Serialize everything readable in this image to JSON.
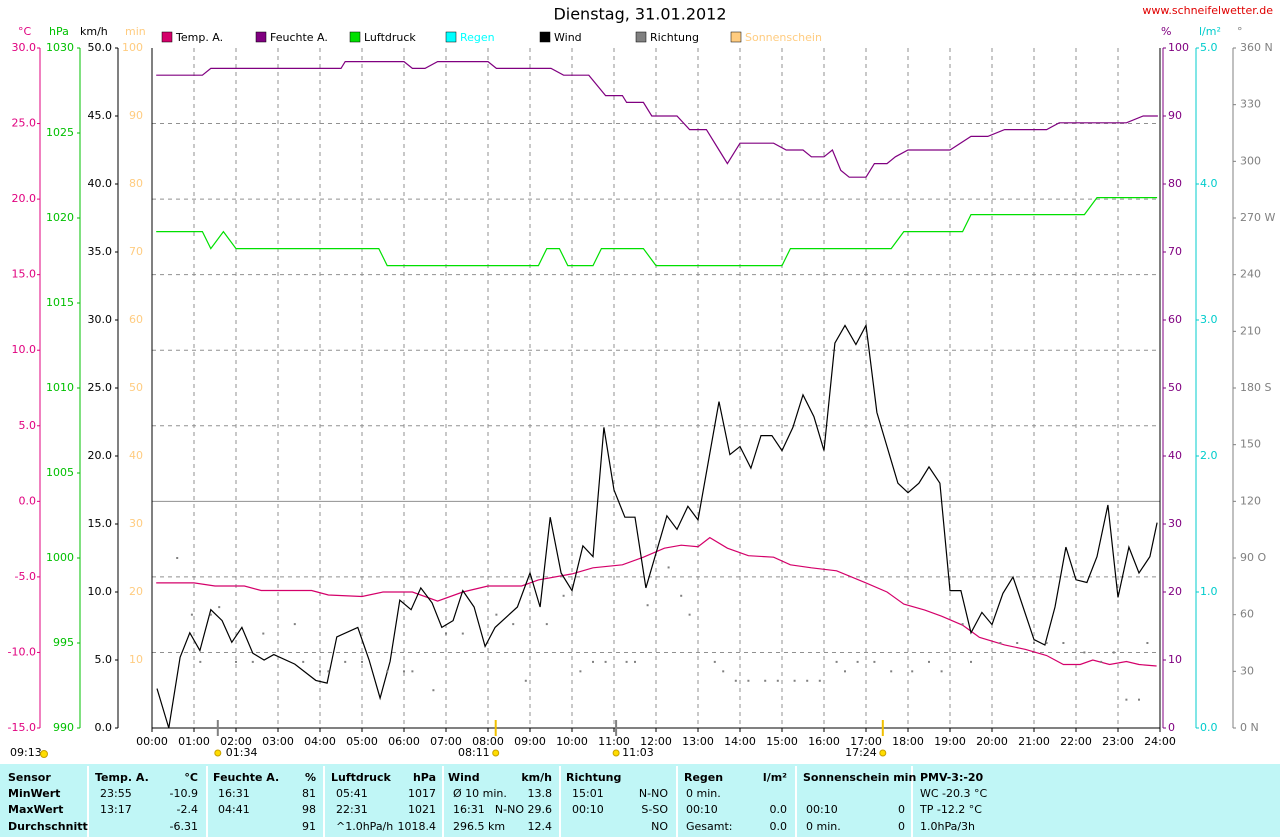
{
  "chart_data": {
    "type": "line",
    "title": "Dienstag, 31.01.2012",
    "source": "www.schneifelwetter.de",
    "left_note": "09:13",
    "grid": true,
    "xlim": [
      0,
      24
    ],
    "xticks": [
      {
        "value": 0,
        "label": "00:00"
      },
      {
        "value": 1,
        "label": "01:00"
      },
      {
        "value": 2,
        "label": "02:00"
      },
      {
        "value": 3,
        "label": "03:00"
      },
      {
        "value": 4,
        "label": "04:00"
      },
      {
        "value": 5,
        "label": "05:00"
      },
      {
        "value": 6,
        "label": "06:00"
      },
      {
        "value": 7,
        "label": "07:00"
      },
      {
        "value": 8,
        "label": "08:00"
      },
      {
        "value": 9,
        "label": "09:00"
      },
      {
        "value": 10,
        "label": "10:00"
      },
      {
        "value": 11,
        "label": "11:00"
      },
      {
        "value": 12,
        "label": "12:00"
      },
      {
        "value": 13,
        "label": "13:00"
      },
      {
        "value": 14,
        "label": "14:00"
      },
      {
        "value": 15,
        "label": "15:00"
      },
      {
        "value": 16,
        "label": "16:00"
      },
      {
        "value": 17,
        "label": "17:00"
      },
      {
        "value": 18,
        "label": "18:00"
      },
      {
        "value": 19,
        "label": "19:00"
      },
      {
        "value": 20,
        "label": "20:00"
      },
      {
        "value": 21,
        "label": "21:00"
      },
      {
        "value": 22,
        "label": "22:00"
      },
      {
        "value": 23,
        "label": "23:00"
      },
      {
        "value": 24,
        "label": "24:00"
      }
    ],
    "axes": [
      {
        "unit": "°C",
        "side": "left",
        "color": "#e0007f",
        "ylim": [
          -15,
          30
        ],
        "yticks": [
          {
            "value": 30,
            "label": "30.0"
          },
          {
            "value": 25,
            "label": "25.0"
          },
          {
            "value": 20,
            "label": "20.0"
          },
          {
            "value": 15,
            "label": "15.0"
          },
          {
            "value": 10,
            "label": "10.0"
          },
          {
            "value": 5,
            "label": "5.0"
          },
          {
            "value": 0,
            "label": "0.0"
          },
          {
            "value": -5,
            "label": "-5.0"
          },
          {
            "value": -10,
            "label": "-10.0"
          },
          {
            "value": -15,
            "label": "-15.0"
          }
        ]
      },
      {
        "unit": "hPa",
        "side": "left",
        "color": "#00c000",
        "ylim": [
          990,
          1030
        ],
        "yticks": [
          1030,
          1025,
          1020,
          1015,
          1010,
          1005,
          1000,
          995,
          990
        ]
      },
      {
        "unit": "km/h",
        "side": "left",
        "color": "#000000",
        "ylim": [
          0,
          50
        ],
        "yticks": [
          {
            "value": 50,
            "label": "50.0"
          },
          {
            "value": 45,
            "label": "45.0"
          },
          {
            "value": 40,
            "label": "40.0"
          },
          {
            "value": 35,
            "label": "35.0"
          },
          {
            "value": 30,
            "label": "30.0"
          },
          {
            "value": 25,
            "label": "25.0"
          },
          {
            "value": 20,
            "label": "20.0"
          },
          {
            "value": 15,
            "label": "15.0"
          },
          {
            "value": 10,
            "label": "10.0"
          },
          {
            "value": 5,
            "label": "5.0"
          },
          {
            "value": 0,
            "label": "0.0"
          }
        ]
      },
      {
        "unit": "min",
        "side": "left",
        "color": "#ffcc80",
        "ylim": [
          0,
          100
        ],
        "yticks": [
          100,
          90,
          80,
          70,
          60,
          50,
          40,
          30,
          20,
          10
        ]
      },
      {
        "unit": "%",
        "side": "right",
        "color": "#800080",
        "ylim": [
          0,
          100
        ],
        "yticks": [
          100,
          90,
          80,
          70,
          60,
          50,
          40,
          30,
          20,
          10,
          0
        ]
      },
      {
        "unit": "l/m²",
        "side": "right",
        "color": "#00cccc",
        "ylim": [
          0,
          5
        ],
        "yticks": [
          {
            "value": 5,
            "label": "5.0"
          },
          {
            "value": 4,
            "label": "4.0"
          },
          {
            "value": 3,
            "label": "3.0"
          },
          {
            "value": 2,
            "label": "2.0"
          },
          {
            "value": 1,
            "label": "1.0"
          },
          {
            "value": 0,
            "label": "0.0"
          }
        ]
      },
      {
        "unit": "°",
        "side": "right",
        "color": "#808080",
        "ylim": [
          0,
          360
        ],
        "yticks": [
          {
            "value": 360,
            "label": "360 N"
          },
          330,
          300,
          {
            "value": 270,
            "label": "270 W"
          },
          240,
          210,
          {
            "value": 180,
            "label": "180 S"
          },
          150,
          120,
          {
            "value": 90,
            "label": "90 O"
          },
          60,
          30,
          {
            "value": 0,
            "label": "0 N"
          }
        ]
      }
    ],
    "series": [
      {
        "name": "Temp. A.",
        "color": "#d4006a",
        "axis": "°C",
        "x": [
          0.1,
          1.0,
          1.5,
          2.2,
          2.6,
          3.8,
          4.2,
          5.0,
          5.5,
          6.2,
          6.8,
          7.4,
          8.0,
          8.8,
          9.2,
          10.0,
          10.5,
          11.2,
          11.7,
          12.2,
          12.6,
          13.0,
          13.28,
          13.7,
          14.2,
          14.8,
          15.2,
          15.7,
          16.3,
          17.0,
          17.5,
          17.9,
          18.4,
          18.8,
          19.3,
          19.7,
          20.3,
          20.8,
          21.3,
          21.7,
          22.1,
          22.4,
          22.8,
          23.2,
          23.5,
          23.92
        ],
        "values": [
          -5.4,
          -5.4,
          -5.6,
          -5.6,
          -5.9,
          -5.9,
          -6.2,
          -6.3,
          -6.0,
          -6.0,
          -6.6,
          -6.0,
          -5.6,
          -5.6,
          -5.2,
          -4.8,
          -4.4,
          -4.2,
          -3.7,
          -3.1,
          -2.9,
          -3.0,
          -2.4,
          -3.1,
          -3.6,
          -3.7,
          -4.2,
          -4.4,
          -4.6,
          -5.4,
          -6.0,
          -6.8,
          -7.2,
          -7.6,
          -8.2,
          -9.0,
          -9.5,
          -9.8,
          -10.2,
          -10.8,
          -10.8,
          -10.5,
          -10.8,
          -10.6,
          -10.8,
          -10.9
        ]
      },
      {
        "name": "Feuchte A.",
        "color": "#800080",
        "axis": "%",
        "x": [
          0.1,
          1.2,
          1.4,
          4.5,
          4.6,
          6.0,
          6.2,
          6.5,
          6.8,
          8.0,
          8.2,
          9.5,
          9.8,
          10.4,
          10.8,
          11.2,
          11.3,
          11.7,
          11.9,
          12.5,
          12.8,
          13.2,
          13.5,
          13.7,
          14.0,
          14.8,
          15.1,
          15.5,
          15.7,
          16.0,
          16.2,
          16.4,
          16.6,
          17.0,
          17.2,
          17.5,
          17.7,
          18.0,
          19.0,
          19.5,
          19.9,
          20.3,
          21.3,
          21.6,
          23.2,
          23.6,
          23.95
        ],
        "values": [
          96,
          96,
          97,
          97,
          98,
          98,
          97,
          97,
          98,
          98,
          97,
          97,
          96,
          96,
          93,
          93,
          92,
          92,
          90,
          90,
          88,
          88,
          85,
          83,
          86,
          86,
          85,
          85,
          84,
          84,
          85,
          82,
          81,
          81,
          83,
          83,
          84,
          85,
          85,
          87,
          87,
          88,
          88,
          89,
          89,
          90,
          90
        ]
      },
      {
        "name": "Luftdruck",
        "color": "#00e000",
        "axis": "hPa",
        "x": [
          0.1,
          1.2,
          1.4,
          1.7,
          2.0,
          5.4,
          5.6,
          9.2,
          9.4,
          9.7,
          9.9,
          10.5,
          10.7,
          11.7,
          12.0,
          15.0,
          15.2,
          17.6,
          17.9,
          19.3,
          19.5,
          22.2,
          22.5,
          23.93
        ],
        "values": [
          1019.2,
          1019.2,
          1018.2,
          1019.2,
          1018.2,
          1018.2,
          1017.2,
          1017.2,
          1018.2,
          1018.2,
          1017.2,
          1017.2,
          1018.2,
          1018.2,
          1017.2,
          1017.2,
          1018.2,
          1018.2,
          1019.2,
          1019.2,
          1020.2,
          1020.2,
          1021.2,
          1021.2
        ]
      },
      {
        "name": "Regen",
        "color": "#00ffff",
        "axis": "l/m²",
        "x": [],
        "values": []
      },
      {
        "name": "Wind",
        "color": "#000000",
        "axis": "km/h",
        "x": [
          0.12,
          0.4,
          0.67,
          0.9,
          1.14,
          1.4,
          1.67,
          1.9,
          2.14,
          2.4,
          2.67,
          2.9,
          3.4,
          3.9,
          4.17,
          4.4,
          4.9,
          5.17,
          5.43,
          5.67,
          5.9,
          6.17,
          6.4,
          6.67,
          6.9,
          7.17,
          7.4,
          7.67,
          7.93,
          8.17,
          8.7,
          9.0,
          9.24,
          9.48,
          9.74,
          10.0,
          10.26,
          10.5,
          10.76,
          11.0,
          11.26,
          11.5,
          11.76,
          12.26,
          12.5,
          12.76,
          13.0,
          13.5,
          13.76,
          14.0,
          14.26,
          14.5,
          14.76,
          15.0,
          15.26,
          15.5,
          15.76,
          16.0,
          16.26,
          16.5,
          16.76,
          17.0,
          17.26,
          17.5,
          17.76,
          18.0,
          18.26,
          18.5,
          18.76,
          19.0,
          19.26,
          19.5,
          19.76,
          20.0,
          20.26,
          20.5,
          21.0,
          21.26,
          21.5,
          21.76,
          22.0,
          22.26,
          22.5,
          22.76,
          23.0,
          23.26,
          23.5,
          23.76,
          23.93
        ],
        "values": [
          2.9,
          0,
          5.2,
          7.0,
          5.7,
          8.7,
          7.9,
          6.3,
          7.4,
          5.5,
          5.0,
          5.4,
          4.7,
          3.5,
          3.3,
          6.7,
          7.4,
          5.0,
          2.2,
          4.9,
          9.4,
          8.7,
          10.3,
          9.2,
          7.4,
          7.9,
          10.1,
          8.9,
          6.0,
          7.4,
          8.9,
          11.4,
          8.9,
          15.5,
          11.4,
          10.1,
          13.4,
          12.6,
          22.1,
          17.5,
          15.5,
          15.5,
          10.3,
          15.6,
          14.6,
          16.3,
          15.3,
          24.0,
          20.1,
          20.7,
          19.1,
          21.5,
          21.5,
          20.4,
          22.1,
          24.5,
          22.9,
          20.4,
          28.3,
          29.6,
          28.2,
          29.6,
          23.2,
          20.7,
          18.0,
          17.3,
          18.0,
          19.2,
          18.0,
          10.1,
          10.1,
          7.0,
          8.5,
          7.6,
          9.9,
          11.1,
          6.5,
          6.1,
          8.9,
          13.3,
          10.9,
          10.7,
          12.6,
          16.4,
          9.6,
          13.3,
          11.4,
          12.6,
          15.1
        ]
      },
      {
        "name": "Richtung",
        "color": "#808080",
        "axis": "°",
        "type": "scatter",
        "x": [
          0.6,
          0.95,
          1.15,
          1.4,
          1.6,
          2.0,
          2.4,
          2.65,
          3.4,
          3.6,
          4.0,
          4.2,
          4.6,
          5.0,
          5.6,
          6.0,
          6.2,
          6.7,
          7.0,
          7.4,
          8.2,
          8.6,
          8.9,
          9.4,
          9.8,
          10.2,
          10.5,
          10.8,
          11.3,
          11.5,
          11.8,
          12.3,
          12.6,
          12.8,
          13.4,
          13.6,
          13.9,
          14.2,
          14.6,
          14.9,
          15.3,
          15.6,
          15.9,
          16.3,
          16.5,
          16.8,
          17.2,
          17.6,
          18.1,
          18.5,
          18.8,
          19.3,
          19.5,
          20.2,
          20.6,
          21.0,
          21.3,
          21.7,
          22.2,
          22.6,
          22.9,
          23.2,
          23.5,
          23.7
        ],
        "values": [
          90,
          60,
          35,
          60,
          64,
          35,
          35,
          50,
          55,
          35,
          30,
          30,
          35,
          35,
          30,
          30,
          30,
          20,
          50,
          50,
          60,
          55,
          25,
          55,
          70,
          30,
          35,
          35,
          35,
          35,
          65,
          85,
          70,
          60,
          35,
          30,
          25,
          25,
          25,
          25,
          25,
          25,
          25,
          35,
          30,
          35,
          35,
          30,
          30,
          35,
          30,
          55,
          35,
          45,
          45,
          45,
          45,
          45,
          40,
          35,
          40,
          15,
          15,
          45
        ]
      },
      {
        "name": "Sonnenschein",
        "color": "#ffcc80",
        "axis": "min",
        "x": [],
        "values": []
      }
    ],
    "annotations": [
      {
        "x": 1.5667,
        "label": "01:34"
      },
      {
        "x": 8.1833,
        "label": "08:11"
      },
      {
        "x": 11.05,
        "label": "11:03"
      },
      {
        "x": 17.4,
        "label": "17:24"
      }
    ]
  },
  "summary": {
    "groups": [
      {
        "header": "Sensor",
        "rows": [
          "MinWert",
          "MaxWert",
          "Durchschnitt"
        ]
      },
      {
        "header": "Temp. A.",
        "unit": "°C",
        "rows": [
          [
            "23:55",
            "-10.9"
          ],
          [
            "13:17",
            "-2.4"
          ],
          [
            null,
            "-6.31"
          ]
        ]
      },
      {
        "header": "Feuchte A.",
        "unit": "%",
        "rows": [
          [
            "16:31",
            "81"
          ],
          [
            "04:41",
            "98"
          ],
          [
            null,
            "91"
          ]
        ]
      },
      {
        "header": "Luftdruck",
        "unit": "hPa",
        "rows": [
          [
            "05:41",
            "1017"
          ],
          [
            "22:31",
            "1021"
          ],
          [
            "^1.0hPa/h",
            "1018.4"
          ]
        ]
      },
      {
        "header": "Wind",
        "unit": "km/h",
        "rows": [
          [
            "Ø 10 min.",
            null,
            "13.8"
          ],
          [
            "16:31",
            "N-NO",
            "29.6"
          ],
          [
            "296.5 km",
            null,
            "12.4"
          ]
        ]
      },
      {
        "header": "Richtung",
        "rows": [
          [
            "15:01",
            "N-NO"
          ],
          [
            "00:10",
            "S-SO"
          ],
          [
            null,
            "NO"
          ]
        ]
      },
      {
        "header": "Regen",
        "unit": "l/m²",
        "rows": [
          [
            "0 min.",
            null
          ],
          [
            "00:10",
            "0.0"
          ],
          [
            "Gesamt:",
            "0.0"
          ]
        ]
      },
      {
        "header": "Sonnenschein min",
        "rows": [
          [
            null,
            null
          ],
          [
            "00:10",
            "0"
          ],
          [
            "0 min.",
            "0"
          ]
        ]
      },
      {
        "header": "PMV-3:-20",
        "rows": [
          "WC -20.3 °C",
          "TP -12.2 °C",
          "1.0hPa/3h"
        ]
      }
    ]
  }
}
